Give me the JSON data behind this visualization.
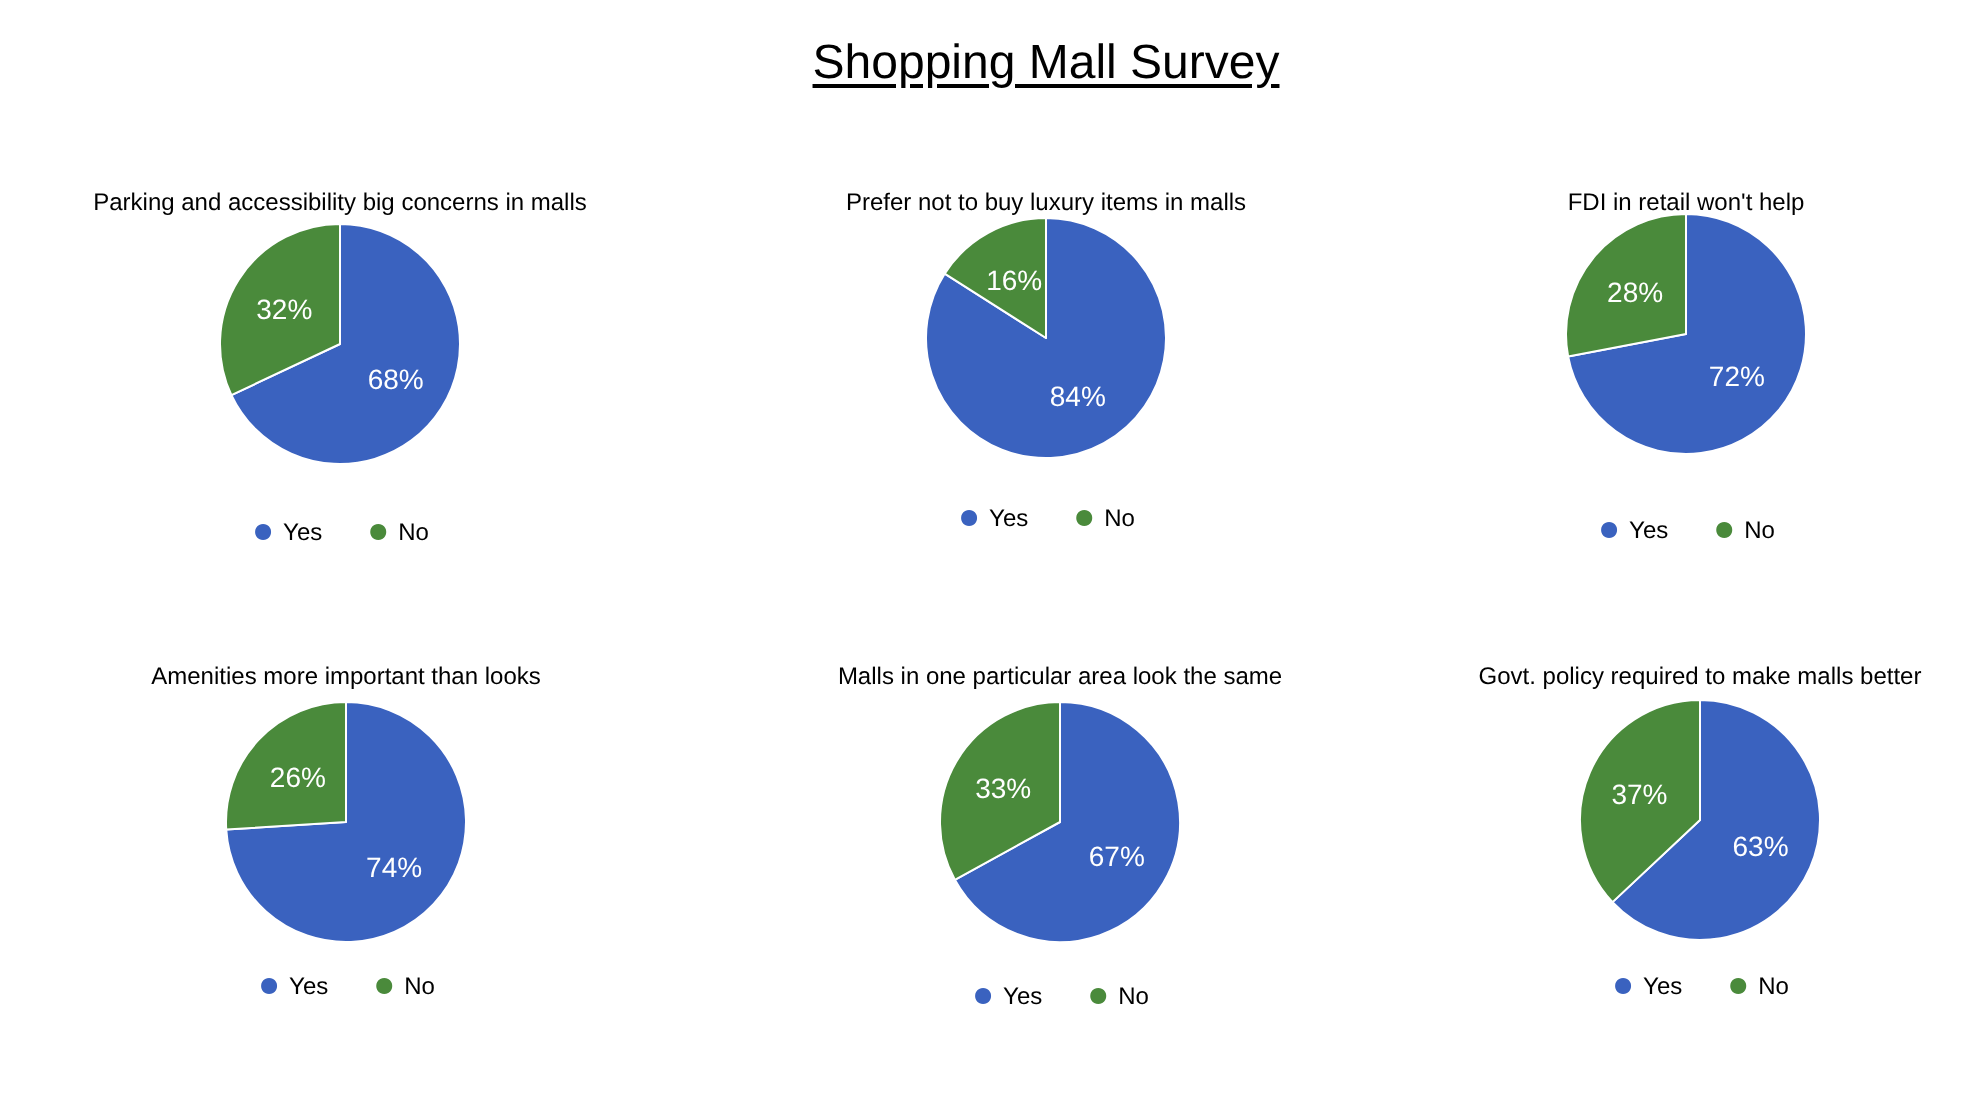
{
  "chart_data": [
    {
      "type": "other",
      "title": "Shopping Mall Survey"
    },
    {
      "type": "pie",
      "title": "Parking and accessibility big concerns in malls",
      "categories": [
        "Yes",
        "No"
      ],
      "values": [
        68,
        32
      ],
      "value_labels": [
        "68%",
        "32%"
      ],
      "colors": [
        "#3a62bf",
        "#4a8a3b"
      ],
      "legend": "bottom"
    },
    {
      "type": "pie",
      "title": "Prefer not to buy luxury items in malls",
      "categories": [
        "Yes",
        "No"
      ],
      "values": [
        84,
        16
      ],
      "value_labels": [
        "84%",
        "16%"
      ],
      "colors": [
        "#3a62bf",
        "#4a8a3b"
      ],
      "legend": "bottom"
    },
    {
      "type": "pie",
      "title": "FDI in retail won't help",
      "categories": [
        "Yes",
        "No"
      ],
      "values": [
        72,
        28
      ],
      "value_labels": [
        "72%",
        "28%"
      ],
      "colors": [
        "#3a62bf",
        "#4a8a3b"
      ],
      "legend": "bottom"
    },
    {
      "type": "pie",
      "title": "Amenities more important than looks",
      "categories": [
        "Yes",
        "No"
      ],
      "values": [
        74,
        26
      ],
      "value_labels": [
        "74%",
        "26%"
      ],
      "colors": [
        "#3a62bf",
        "#4a8a3b"
      ],
      "legend": "bottom"
    },
    {
      "type": "pie",
      "title": "Malls in one particular area look the same",
      "categories": [
        "Yes",
        "No"
      ],
      "values": [
        67,
        33
      ],
      "value_labels": [
        "67%",
        "33%"
      ],
      "colors": [
        "#3a62bf",
        "#4a8a3b"
      ],
      "legend": "bottom"
    },
    {
      "type": "pie",
      "title": "Govt. policy required to make malls better",
      "categories": [
        "Yes",
        "No"
      ],
      "values": [
        63,
        37
      ],
      "value_labels": [
        "63%",
        "37%"
      ],
      "colors": [
        "#3a62bf",
        "#4a8a3b"
      ],
      "legend": "bottom"
    }
  ]
}
